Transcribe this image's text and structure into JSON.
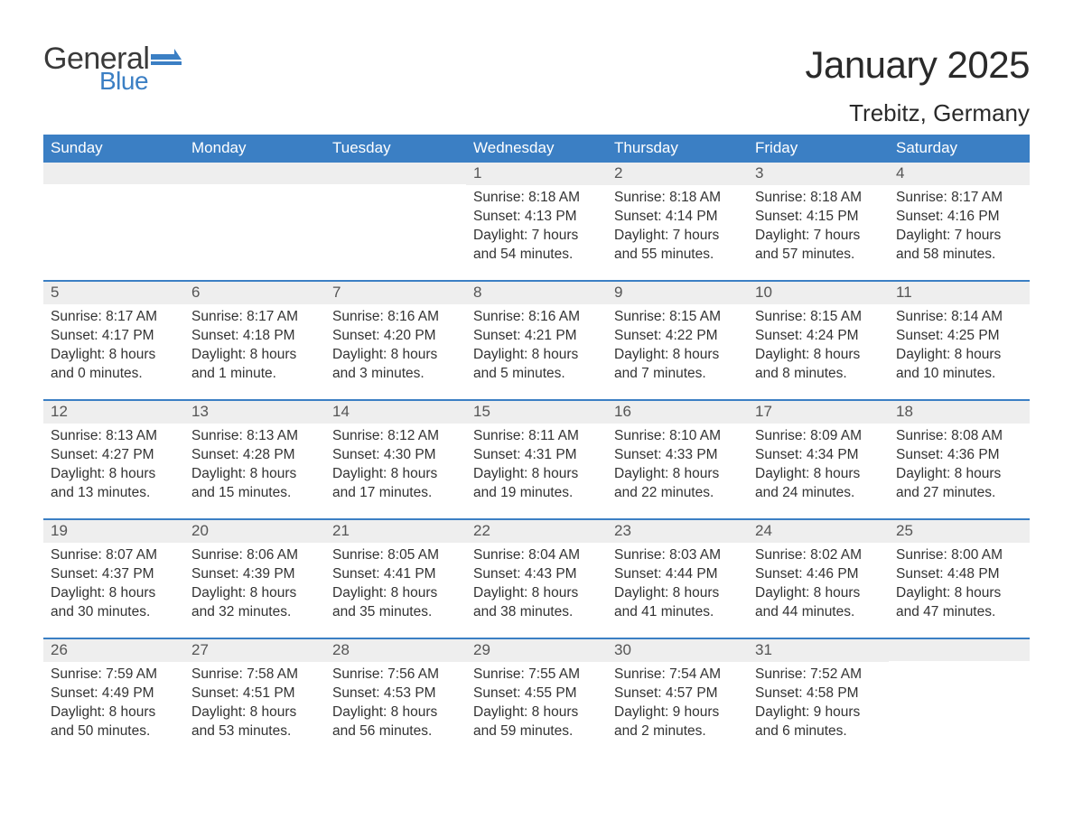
{
  "logo": {
    "line1": "General",
    "line2": "Blue",
    "shape_color": "#3b7fc4",
    "text_color_1": "#3a3a3a",
    "text_color_2": "#3b7fc4"
  },
  "title": "January 2025",
  "subtitle": "Trebitz, Germany",
  "colors": {
    "header_bg": "#3b7fc4",
    "header_text": "#ffffff",
    "daynum_bg": "#eeeeee",
    "daynum_text": "#555555",
    "body_text": "#333333",
    "week_divider": "#3b7fc4",
    "page_bg": "#ffffff"
  },
  "typography": {
    "title_fontsize": 42,
    "subtitle_fontsize": 26,
    "weekday_fontsize": 17,
    "daynum_fontsize": 17,
    "body_fontsize": 15.5,
    "font_family": "Arial"
  },
  "weekdays": [
    "Sunday",
    "Monday",
    "Tuesday",
    "Wednesday",
    "Thursday",
    "Friday",
    "Saturday"
  ],
  "weeks": [
    [
      null,
      null,
      null,
      {
        "n": "1",
        "sunrise": "Sunrise: 8:18 AM",
        "sunset": "Sunset: 4:13 PM",
        "dl1": "Daylight: 7 hours",
        "dl2": "and 54 minutes."
      },
      {
        "n": "2",
        "sunrise": "Sunrise: 8:18 AM",
        "sunset": "Sunset: 4:14 PM",
        "dl1": "Daylight: 7 hours",
        "dl2": "and 55 minutes."
      },
      {
        "n": "3",
        "sunrise": "Sunrise: 8:18 AM",
        "sunset": "Sunset: 4:15 PM",
        "dl1": "Daylight: 7 hours",
        "dl2": "and 57 minutes."
      },
      {
        "n": "4",
        "sunrise": "Sunrise: 8:17 AM",
        "sunset": "Sunset: 4:16 PM",
        "dl1": "Daylight: 7 hours",
        "dl2": "and 58 minutes."
      }
    ],
    [
      {
        "n": "5",
        "sunrise": "Sunrise: 8:17 AM",
        "sunset": "Sunset: 4:17 PM",
        "dl1": "Daylight: 8 hours",
        "dl2": "and 0 minutes."
      },
      {
        "n": "6",
        "sunrise": "Sunrise: 8:17 AM",
        "sunset": "Sunset: 4:18 PM",
        "dl1": "Daylight: 8 hours",
        "dl2": "and 1 minute."
      },
      {
        "n": "7",
        "sunrise": "Sunrise: 8:16 AM",
        "sunset": "Sunset: 4:20 PM",
        "dl1": "Daylight: 8 hours",
        "dl2": "and 3 minutes."
      },
      {
        "n": "8",
        "sunrise": "Sunrise: 8:16 AM",
        "sunset": "Sunset: 4:21 PM",
        "dl1": "Daylight: 8 hours",
        "dl2": "and 5 minutes."
      },
      {
        "n": "9",
        "sunrise": "Sunrise: 8:15 AM",
        "sunset": "Sunset: 4:22 PM",
        "dl1": "Daylight: 8 hours",
        "dl2": "and 7 minutes."
      },
      {
        "n": "10",
        "sunrise": "Sunrise: 8:15 AM",
        "sunset": "Sunset: 4:24 PM",
        "dl1": "Daylight: 8 hours",
        "dl2": "and 8 minutes."
      },
      {
        "n": "11",
        "sunrise": "Sunrise: 8:14 AM",
        "sunset": "Sunset: 4:25 PM",
        "dl1": "Daylight: 8 hours",
        "dl2": "and 10 minutes."
      }
    ],
    [
      {
        "n": "12",
        "sunrise": "Sunrise: 8:13 AM",
        "sunset": "Sunset: 4:27 PM",
        "dl1": "Daylight: 8 hours",
        "dl2": "and 13 minutes."
      },
      {
        "n": "13",
        "sunrise": "Sunrise: 8:13 AM",
        "sunset": "Sunset: 4:28 PM",
        "dl1": "Daylight: 8 hours",
        "dl2": "and 15 minutes."
      },
      {
        "n": "14",
        "sunrise": "Sunrise: 8:12 AM",
        "sunset": "Sunset: 4:30 PM",
        "dl1": "Daylight: 8 hours",
        "dl2": "and 17 minutes."
      },
      {
        "n": "15",
        "sunrise": "Sunrise: 8:11 AM",
        "sunset": "Sunset: 4:31 PM",
        "dl1": "Daylight: 8 hours",
        "dl2": "and 19 minutes."
      },
      {
        "n": "16",
        "sunrise": "Sunrise: 8:10 AM",
        "sunset": "Sunset: 4:33 PM",
        "dl1": "Daylight: 8 hours",
        "dl2": "and 22 minutes."
      },
      {
        "n": "17",
        "sunrise": "Sunrise: 8:09 AM",
        "sunset": "Sunset: 4:34 PM",
        "dl1": "Daylight: 8 hours",
        "dl2": "and 24 minutes."
      },
      {
        "n": "18",
        "sunrise": "Sunrise: 8:08 AM",
        "sunset": "Sunset: 4:36 PM",
        "dl1": "Daylight: 8 hours",
        "dl2": "and 27 minutes."
      }
    ],
    [
      {
        "n": "19",
        "sunrise": "Sunrise: 8:07 AM",
        "sunset": "Sunset: 4:37 PM",
        "dl1": "Daylight: 8 hours",
        "dl2": "and 30 minutes."
      },
      {
        "n": "20",
        "sunrise": "Sunrise: 8:06 AM",
        "sunset": "Sunset: 4:39 PM",
        "dl1": "Daylight: 8 hours",
        "dl2": "and 32 minutes."
      },
      {
        "n": "21",
        "sunrise": "Sunrise: 8:05 AM",
        "sunset": "Sunset: 4:41 PM",
        "dl1": "Daylight: 8 hours",
        "dl2": "and 35 minutes."
      },
      {
        "n": "22",
        "sunrise": "Sunrise: 8:04 AM",
        "sunset": "Sunset: 4:43 PM",
        "dl1": "Daylight: 8 hours",
        "dl2": "and 38 minutes."
      },
      {
        "n": "23",
        "sunrise": "Sunrise: 8:03 AM",
        "sunset": "Sunset: 4:44 PM",
        "dl1": "Daylight: 8 hours",
        "dl2": "and 41 minutes."
      },
      {
        "n": "24",
        "sunrise": "Sunrise: 8:02 AM",
        "sunset": "Sunset: 4:46 PM",
        "dl1": "Daylight: 8 hours",
        "dl2": "and 44 minutes."
      },
      {
        "n": "25",
        "sunrise": "Sunrise: 8:00 AM",
        "sunset": "Sunset: 4:48 PM",
        "dl1": "Daylight: 8 hours",
        "dl2": "and 47 minutes."
      }
    ],
    [
      {
        "n": "26",
        "sunrise": "Sunrise: 7:59 AM",
        "sunset": "Sunset: 4:49 PM",
        "dl1": "Daylight: 8 hours",
        "dl2": "and 50 minutes."
      },
      {
        "n": "27",
        "sunrise": "Sunrise: 7:58 AM",
        "sunset": "Sunset: 4:51 PM",
        "dl1": "Daylight: 8 hours",
        "dl2": "and 53 minutes."
      },
      {
        "n": "28",
        "sunrise": "Sunrise: 7:56 AM",
        "sunset": "Sunset: 4:53 PM",
        "dl1": "Daylight: 8 hours",
        "dl2": "and 56 minutes."
      },
      {
        "n": "29",
        "sunrise": "Sunrise: 7:55 AM",
        "sunset": "Sunset: 4:55 PM",
        "dl1": "Daylight: 8 hours",
        "dl2": "and 59 minutes."
      },
      {
        "n": "30",
        "sunrise": "Sunrise: 7:54 AM",
        "sunset": "Sunset: 4:57 PM",
        "dl1": "Daylight: 9 hours",
        "dl2": "and 2 minutes."
      },
      {
        "n": "31",
        "sunrise": "Sunrise: 7:52 AM",
        "sunset": "Sunset: 4:58 PM",
        "dl1": "Daylight: 9 hours",
        "dl2": "and 6 minutes."
      },
      null
    ]
  ]
}
